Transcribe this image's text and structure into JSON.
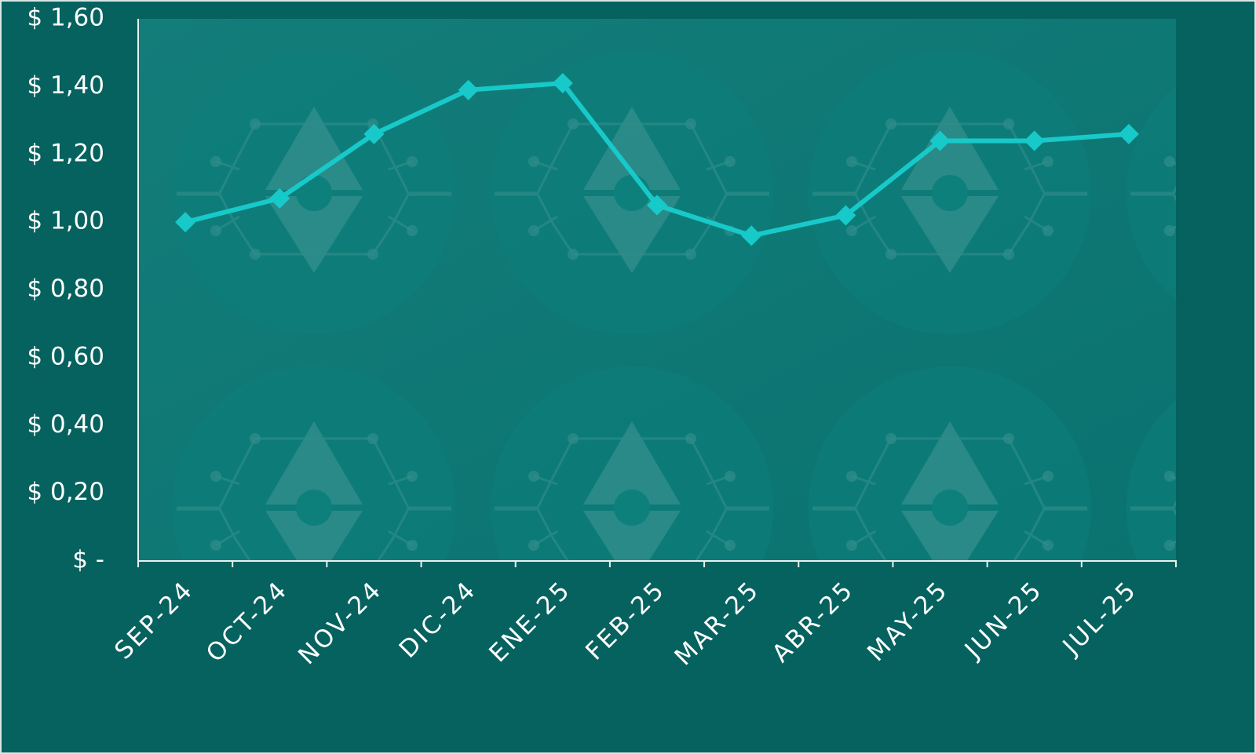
{
  "chart_data": {
    "type": "line",
    "title": "",
    "xlabel": "",
    "ylabel": "",
    "categories": [
      "SEP-24",
      "OCT-24",
      "NOV-24",
      "DIC-24",
      "ENE-25",
      "FEB-25",
      "MAR-25",
      "ABR-25",
      "MAY-25",
      "JUN-25",
      "JUL-25"
    ],
    "series": [
      {
        "values": [
          1.0,
          1.07,
          1.26,
          1.39,
          1.41,
          1.05,
          0.96,
          1.02,
          1.24,
          1.24,
          1.26
        ]
      }
    ],
    "ylim": [
      0,
      1.6
    ],
    "y_tick_values": [
      0,
      0.2,
      0.4,
      0.6,
      0.8,
      1.0,
      1.2,
      1.4,
      1.6
    ],
    "y_tick_labels": [
      "$ -",
      "$ 0,20",
      "$ 0,40",
      "$ 0,60",
      "$ 0,80",
      "$ 1,00",
      "$ 1,20",
      "$ 1,40",
      "$ 1,60"
    ],
    "grid": false,
    "legend": "none",
    "colors": {
      "background": "#05625f",
      "plot_area": "#0e7a77",
      "line": "#18c9c9",
      "axis": "#e8f1f0",
      "text": "#ffffff"
    }
  }
}
